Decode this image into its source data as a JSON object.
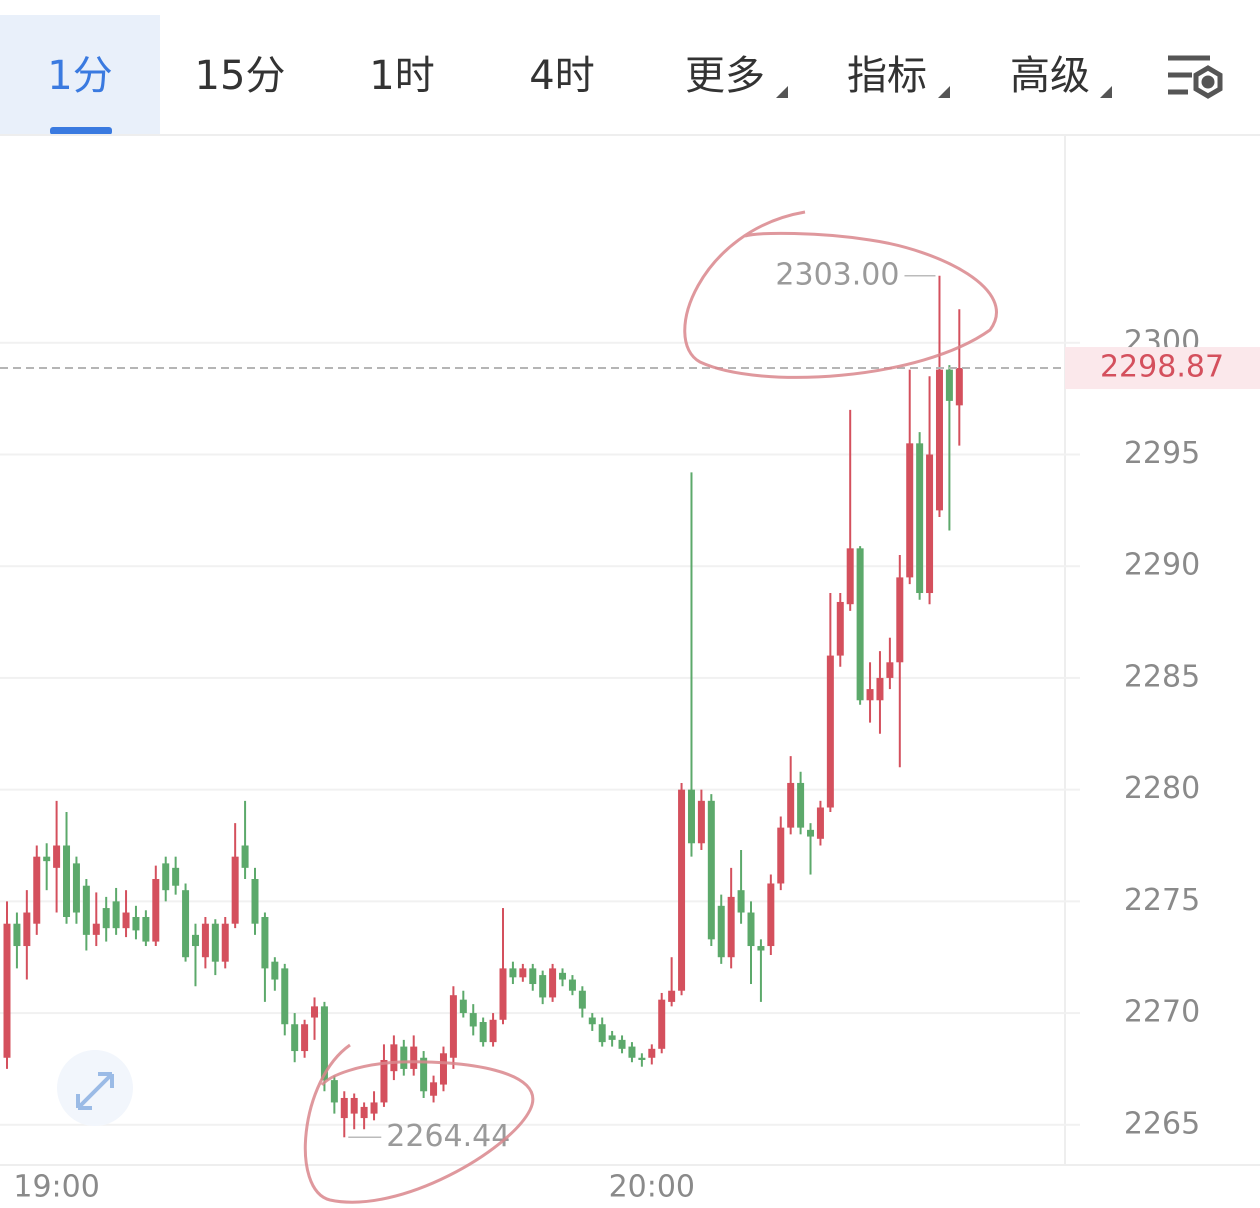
{
  "tabs": [
    "1分",
    "15分",
    "1时",
    "4时",
    "更多",
    "指标",
    "高级"
  ],
  "chart_data": {
    "type": "candlestick",
    "categories": [
      null,
      null,
      null,
      null,
      null,
      "19:00",
      null,
      null,
      null,
      null,
      null,
      null,
      null,
      null,
      null,
      null,
      null,
      null,
      null,
      null,
      null,
      null,
      null,
      null,
      null,
      null,
      null,
      null,
      null,
      null,
      null,
      null,
      null,
      null,
      null,
      null,
      null,
      null,
      null,
      null,
      null,
      null,
      null,
      null,
      null,
      null,
      null,
      null,
      null,
      null,
      null,
      null,
      null,
      null,
      null,
      null,
      null,
      null,
      null,
      null,
      null,
      null,
      null,
      null,
      null,
      "20:00",
      null,
      null,
      null,
      null,
      null,
      null,
      null,
      null,
      null,
      null,
      null,
      null,
      null,
      null,
      null,
      null,
      null,
      null,
      null,
      null,
      null,
      null,
      null,
      null,
      null,
      null,
      null,
      null,
      null,
      null,
      null
    ],
    "open": [
      2268,
      2274,
      2273,
      2274,
      2277,
      2276.5,
      2277.5,
      2276.7,
      2275.7,
      2273.5,
      2274.7,
      2275,
      2273.8,
      2274.3,
      2274.3,
      2273.2,
      2276.7,
      2276.5,
      2275.5,
      2273.5,
      2272.5,
      2274,
      2272.3,
      2274,
      2277.5,
      2276,
      2274.3,
      2272.3,
      2272,
      2269.5,
      2268.3,
      2269.8,
      2270.3,
      2267,
      2265.3,
      2265.5,
      2265.3,
      2265.5,
      2266,
      2267.4,
      2268.5,
      2267.5,
      2268,
      2266.3,
      2266.8,
      2268,
      2270.6,
      2270,
      2269.6,
      2268.7,
      2269.7,
      2272,
      2271.6,
      2272,
      2271.7,
      2270.7,
      2271.8,
      2271.5,
      2271,
      2269.8,
      2269.5,
      2269,
      2268.8,
      2268.5,
      2268,
      2268,
      2268.4,
      2270.5,
      2271,
      2280,
      2277.6,
      2279.5,
      2274.8,
      2272.5,
      2275.5,
      2274.5,
      2273,
      2273,
      2275.8,
      2278.3,
      2280.3,
      2278.2,
      2277.8,
      2279.2,
      2286,
      2288.3,
      2290.8,
      2284,
      2284,
      2285,
      2285.7,
      2289.5,
      2295.5,
      2288.8,
      2292.5,
      2298.8,
      2297.2
    ],
    "high": [
      2275,
      2274.5,
      2275.5,
      2277.5,
      2277.6,
      2279.5,
      2279,
      2277,
      2276,
      2275.4,
      2275.2,
      2275.6,
      2275.5,
      2274.8,
      2274.6,
      2276.6,
      2277,
      2277,
      2275.8,
      2274,
      2274.3,
      2274.2,
      2274.3,
      2278.5,
      2279.5,
      2276.5,
      2274.5,
      2272.5,
      2272.2,
      2270,
      2269.7,
      2270.7,
      2270.5,
      2267.2,
      2266.5,
      2266.4,
      2266,
      2266.5,
      2268.6,
      2269,
      2268.8,
      2269,
      2268.3,
      2267.2,
      2268.5,
      2271.2,
      2271,
      2270.4,
      2269.8,
      2270,
      2274.7,
      2272.3,
      2272.2,
      2272.2,
      2271.9,
      2272.2,
      2272,
      2271.7,
      2271.2,
      2270,
      2269.8,
      2269.2,
      2269,
      2268.7,
      2268.2,
      2268.6,
      2270.9,
      2272.5,
      2280.3,
      2294.2,
      2280,
      2279.8,
      2275.3,
      2276.5,
      2277.3,
      2275,
      2273.3,
      2276.2,
      2278.8,
      2281.5,
      2280.8,
      2278.5,
      2279.5,
      2288.8,
      2288.8,
      2297,
      2290.9,
      2285.7,
      2286.2,
      2286.8,
      2290.5,
      2298.8,
      2296,
      2298.5,
      2303,
      2299,
      2301.5
    ],
    "low": [
      2267.5,
      2272,
      2271.5,
      2273.5,
      2275.5,
      2274.5,
      2274,
      2274,
      2272.8,
      2273,
      2273.2,
      2273.5,
      2273.4,
      2273.3,
      2273,
      2273,
      2275,
      2275.3,
      2272.3,
      2271.2,
      2272,
      2271.7,
      2272,
      2273.8,
      2276,
      2273.5,
      2270.5,
      2271,
      2269,
      2267.8,
      2268,
      2268.8,
      2266.5,
      2265.5,
      2264.44,
      2264.8,
      2264.8,
      2265.2,
      2265.8,
      2267,
      2267.2,
      2267.2,
      2266.2,
      2266,
      2266.5,
      2267.5,
      2269.8,
      2269,
      2268.5,
      2268.5,
      2269.5,
      2271.3,
      2271.4,
      2271,
      2270.4,
      2270.5,
      2271.2,
      2270.8,
      2269.8,
      2269.2,
      2268.5,
      2268.5,
      2268.2,
      2267.8,
      2267.6,
      2267.7,
      2268.2,
      2270.3,
      2270.8,
      2277,
      2277.3,
      2273,
      2272.2,
      2272,
      2274,
      2271.3,
      2270.5,
      2272.6,
      2275.5,
      2278,
      2278,
      2276.2,
      2277.5,
      2279,
      2285.5,
      2288,
      2283.8,
      2283,
      2282.5,
      2284.5,
      2281,
      2289.2,
      2288.5,
      2288.3,
      2292.2,
      2291.6,
      2295.4
    ],
    "close": [
      2274,
      2273,
      2274.5,
      2277,
      2276.8,
      2277.5,
      2274.3,
      2274.5,
      2273.5,
      2274,
      2273.8,
      2273.8,
      2274.5,
      2273.7,
      2273.2,
      2276,
      2275.5,
      2275.7,
      2272.5,
      2273,
      2274,
      2272.3,
      2274,
      2277,
      2276.5,
      2274,
      2272,
      2271.5,
      2269.5,
      2268.3,
      2269.5,
      2270.3,
      2267,
      2266,
      2266.2,
      2266.2,
      2265.8,
      2266,
      2267.9,
      2268.6,
      2267.5,
      2268.5,
      2266.5,
      2266.9,
      2268.2,
      2270.8,
      2270,
      2269.4,
      2268.7,
      2269.7,
      2272,
      2271.6,
      2272,
      2271.3,
      2270.7,
      2272,
      2271.5,
      2271,
      2270.2,
      2269.5,
      2268.7,
      2268.8,
      2268.4,
      2268,
      2267.9,
      2268.4,
      2270.6,
      2271,
      2280,
      2277.6,
      2279.5,
      2273.3,
      2272.5,
      2275.2,
      2274.5,
      2273,
      2272.8,
      2275.8,
      2278.3,
      2280.3,
      2278.3,
      2277.9,
      2279.2,
      2286,
      2288.4,
      2290.8,
      2284,
      2284.5,
      2285,
      2285.7,
      2289.5,
      2295.5,
      2288.8,
      2295,
      2298.8,
      2297.4,
      2298.87
    ],
    "up_color": "#d4505d",
    "down_color": "#5ca96b",
    "ylim": [
      2263.2,
      2309.3
    ],
    "yticks": [
      2265,
      2270,
      2275,
      2280,
      2285,
      2290,
      2295,
      2300
    ],
    "grid": true,
    "last_price": 2298.87,
    "max_marker": {
      "value": 2303,
      "label": "2303.00"
    },
    "min_marker": 2264.44
  }
}
